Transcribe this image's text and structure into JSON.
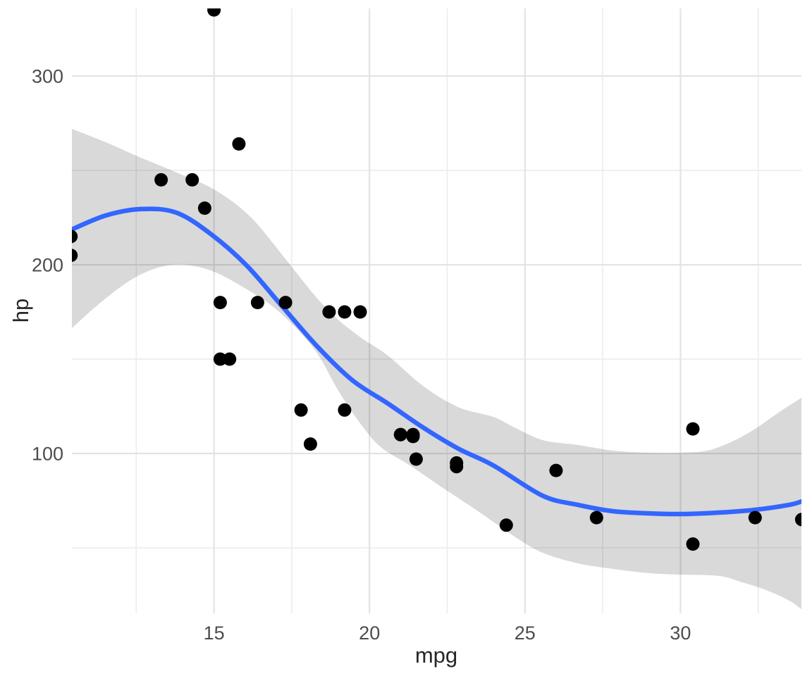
{
  "chart_data": {
    "type": "scatter",
    "title": "",
    "xlabel": "mpg",
    "ylabel": "hp",
    "grid": true,
    "legend": "none",
    "x_axis": {
      "ticks": [
        15,
        20,
        25,
        30
      ],
      "minor_ticks": [
        12.5,
        17.5,
        22.5,
        27.5,
        32.5
      ],
      "range": [
        10.43,
        33.89
      ]
    },
    "y_axis": {
      "ticks": [
        100,
        200,
        300
      ],
      "minor_ticks": [
        50,
        150,
        250
      ],
      "range": [
        15.3,
        335.8
      ]
    },
    "points": [
      [
        21.0,
        110
      ],
      [
        21.0,
        110
      ],
      [
        22.8,
        93
      ],
      [
        21.4,
        110
      ],
      [
        18.7,
        175
      ],
      [
        18.1,
        105
      ],
      [
        14.3,
        245
      ],
      [
        24.4,
        62
      ],
      [
        22.8,
        95
      ],
      [
        19.2,
        123
      ],
      [
        17.8,
        123
      ],
      [
        16.4,
        180
      ],
      [
        17.3,
        180
      ],
      [
        15.2,
        180
      ],
      [
        10.4,
        205
      ],
      [
        10.4,
        215
      ],
      [
        14.7,
        230
      ],
      [
        32.4,
        66
      ],
      [
        30.4,
        52
      ],
      [
        33.9,
        65
      ],
      [
        21.5,
        97
      ],
      [
        15.5,
        150
      ],
      [
        15.2,
        150
      ],
      [
        13.3,
        245
      ],
      [
        19.2,
        175
      ],
      [
        27.3,
        66
      ],
      [
        26.0,
        91
      ],
      [
        30.4,
        113
      ],
      [
        15.8,
        264
      ],
      [
        19.7,
        175
      ],
      [
        15.0,
        335
      ],
      [
        21.4,
        109
      ]
    ],
    "smooth_line": [
      [
        10.43,
        218.7
      ],
      [
        11.52,
        226.1
      ],
      [
        12.65,
        229.5
      ],
      [
        13.79,
        227.6
      ],
      [
        14.92,
        216.0
      ],
      [
        16.05,
        199.6
      ],
      [
        17.19,
        178.0
      ],
      [
        18.32,
        156.7
      ],
      [
        19.45,
        138.8
      ],
      [
        20.59,
        126.5
      ],
      [
        21.72,
        113.8
      ],
      [
        22.85,
        102.6
      ],
      [
        23.98,
        93.7
      ],
      [
        25.57,
        77.6
      ],
      [
        26.7,
        72.8
      ],
      [
        27.84,
        69.4
      ],
      [
        28.97,
        68.3
      ],
      [
        29.99,
        67.9
      ],
      [
        31.24,
        68.7
      ],
      [
        32.37,
        70.1
      ],
      [
        33.5,
        72.8
      ],
      [
        33.89,
        74.6
      ]
    ],
    "ribbon_upper": [
      [
        10.43,
        272.0
      ],
      [
        11.52,
        264.9
      ],
      [
        12.54,
        257.5
      ],
      [
        13.79,
        248.9
      ],
      [
        15.03,
        239.6
      ],
      [
        16.17,
        225.4
      ],
      [
        17.3,
        203.0
      ],
      [
        18.21,
        184.3
      ],
      [
        18.89,
        172.4
      ],
      [
        19.68,
        161.9
      ],
      [
        20.59,
        151.9
      ],
      [
        21.72,
        135.8
      ],
      [
        22.85,
        124.6
      ],
      [
        23.98,
        119.4
      ],
      [
        24.66,
        113.8
      ],
      [
        25.57,
        107.1
      ],
      [
        26.7,
        104.5
      ],
      [
        27.84,
        101.5
      ],
      [
        28.97,
        100.4
      ],
      [
        29.99,
        100.4
      ],
      [
        30.85,
        101.5
      ],
      [
        31.62,
        106.0
      ],
      [
        32.37,
        112.7
      ],
      [
        33.12,
        121.3
      ],
      [
        33.89,
        129.5
      ]
    ],
    "ribbon_lower": [
      [
        10.43,
        166.4
      ],
      [
        11.4,
        180.6
      ],
      [
        12.54,
        194.0
      ],
      [
        13.67,
        200.0
      ],
      [
        14.81,
        197.4
      ],
      [
        15.94,
        188.1
      ],
      [
        17.07,
        175.4
      ],
      [
        18.21,
        155.6
      ],
      [
        19.0,
        133.2
      ],
      [
        19.68,
        116.4
      ],
      [
        20.36,
        103.4
      ],
      [
        21.27,
        94.0
      ],
      [
        22.4,
        81.3
      ],
      [
        23.53,
        69.0
      ],
      [
        24.66,
        56.0
      ],
      [
        25.57,
        47.4
      ],
      [
        26.7,
        41.8
      ],
      [
        27.84,
        38.8
      ],
      [
        28.97,
        36.6
      ],
      [
        29.99,
        35.8
      ],
      [
        31.24,
        35.1
      ],
      [
        31.99,
        31.7
      ],
      [
        32.76,
        27.6
      ],
      [
        33.5,
        22.0
      ],
      [
        33.89,
        17.5
      ]
    ],
    "colors": {
      "point": "#000000",
      "smooth_line": "#3366FF",
      "ribbon": "rgba(0,0,0,0.15)",
      "grid_major": "#E3E3E3",
      "grid_minor": "#ECECEC",
      "axis_text": "#4D4D4D",
      "axis_title": "#262626",
      "background": "#FFFFFF"
    }
  }
}
